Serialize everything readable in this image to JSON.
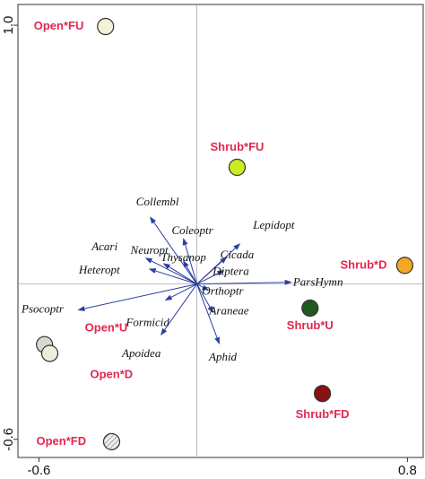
{
  "chart_data": {
    "type": "biplot",
    "xlim": [
      -0.68,
      0.86
    ],
    "ylim": [
      -0.67,
      1.08
    ],
    "xticks": [
      -0.6,
      0.8
    ],
    "yticks": [
      {
        "value": 1,
        "label": "1.0"
      },
      -0.6
    ],
    "arrow_color": "#2a3fa0",
    "species": [
      {
        "name": "Collembl",
        "x": -0.177,
        "y": 0.258
      },
      {
        "name": "Coleoptr",
        "x": -0.051,
        "y": 0.175
      },
      {
        "name": "Lepidopt",
        "x": 0.163,
        "y": 0.155
      },
      {
        "name": "Acari",
        "x": -0.194,
        "y": 0.1
      },
      {
        "name": "Neuropt",
        "x": -0.126,
        "y": 0.079
      },
      {
        "name": "Thysanop",
        "x": -0.051,
        "y": 0.089
      },
      {
        "name": "Cicada",
        "x": 0.112,
        "y": 0.103
      },
      {
        "name": "Heteropt",
        "x": -0.18,
        "y": 0.058
      },
      {
        "name": "Diptera",
        "x": 0.102,
        "y": 0.052
      },
      {
        "name": "ParsHymn",
        "x": 0.358,
        "y": 0.007
      },
      {
        "name": "Orthoptr",
        "x": 0.044,
        "y": -0.024
      },
      {
        "name": "Psocoptr",
        "x": -0.45,
        "y": -0.1
      },
      {
        "name": "Formicid",
        "x": -0.119,
        "y": -0.062
      },
      {
        "name": "Araneae",
        "x": 0.061,
        "y": -0.11
      },
      {
        "name": "Apoidea",
        "x": -0.136,
        "y": -0.196
      },
      {
        "name": "Aphid",
        "x": 0.085,
        "y": -0.23
      }
    ],
    "sites": [
      {
        "name": "Open*FU",
        "x": -0.347,
        "y": 0.995,
        "color": "#f3f1d6"
      },
      {
        "name": "Shrub*FU",
        "x": 0.153,
        "y": 0.451,
        "color": "#ccec22"
      },
      {
        "name": "Shrub*D",
        "x": 0.79,
        "y": 0.072,
        "color": "#f5a623"
      },
      {
        "name": "Shrub*U",
        "x": 0.43,
        "y": -0.093,
        "color": "#1f5a1f"
      },
      {
        "name": "Shrub*FD",
        "x": 0.477,
        "y": -0.423,
        "color": "#8b1212"
      },
      {
        "name": "Open*U",
        "x": -0.579,
        "y": -0.234,
        "color": "#d8d8d0"
      },
      {
        "name": "Open*D",
        "x": -0.559,
        "y": -0.268,
        "color": "#eeeedc"
      },
      {
        "name": "Open*FD",
        "x": -0.324,
        "y": -0.609,
        "color": "#dddddd",
        "hatched": true
      }
    ]
  }
}
